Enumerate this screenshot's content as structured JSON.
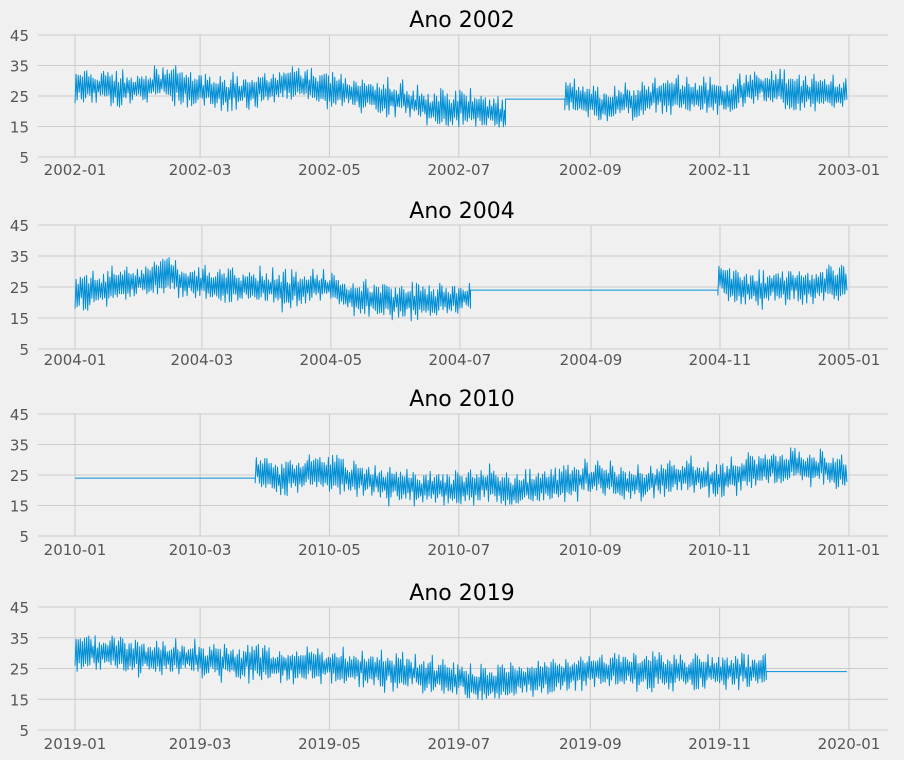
{
  "chart_data": [
    {
      "type": "line",
      "title": "Ano 2002",
      "x_range": [
        "2002-01-01",
        "2003-01-01"
      ],
      "ylim": [
        5,
        45
      ],
      "yticks": [
        5,
        15,
        25,
        35,
        45
      ],
      "xtick_labels": [
        "2002-01",
        "2002-03",
        "2002-05",
        "2002-07",
        "2002-09",
        "2002-11",
        "2003-01"
      ],
      "grid": true,
      "series": [
        {
          "color": "#008fd5",
          "segments": [
            {
              "from": "2002-01-01",
              "to": "2002-07-23",
              "level": [
                28,
                28,
                27,
                28,
                29,
                28,
                27,
                26,
                26,
                28,
                29,
                28,
                27,
                26,
                25,
                24,
                22,
                21,
                21,
                20,
                18
              ]
            },
            {
              "from": "2002-07-23",
              "to": "2002-08-20",
              "flat": 24
            },
            {
              "from": "2002-08-20",
              "to": "2002-12-31",
              "level": [
                25,
                23,
                21,
                23,
                24,
                26,
                25,
                25,
                24,
                27,
                28,
                27,
                26,
                26,
                26
              ]
            }
          ]
        }
      ]
    },
    {
      "type": "line",
      "title": "Ano 2004",
      "x_range": [
        "2004-01-01",
        "2005-01-01"
      ],
      "ylim": [
        5,
        45
      ],
      "yticks": [
        5,
        15,
        25,
        35,
        45
      ],
      "xtick_labels": [
        "2004-01",
        "2004-03",
        "2004-05",
        "2004-07",
        "2004-09",
        "2004-11",
        "2005-01"
      ],
      "grid": true,
      "series": [
        {
          "color": "#008fd5",
          "segments": [
            {
              "from": "2004-01-01",
              "to": "2004-07-06",
              "level": [
                23,
                24,
                26,
                27,
                29,
                26,
                26,
                25,
                25,
                24,
                25,
                25,
                21,
                21,
                20,
                20,
                21,
                22
              ]
            },
            {
              "from": "2004-07-06",
              "to": "2004-10-31",
              "flat": 24
            },
            {
              "from": "2004-10-31",
              "to": "2004-12-31",
              "level": [
                27,
                25,
                24,
                25,
                26,
                25,
                26,
                27
              ]
            }
          ]
        }
      ]
    },
    {
      "type": "line",
      "title": "Ano 2010",
      "x_range": [
        "2010-01-01",
        "2011-01-01"
      ],
      "ylim": [
        5,
        45
      ],
      "yticks": [
        5,
        15,
        25,
        35,
        45
      ],
      "xtick_labels": [
        "2010-01",
        "2010-03",
        "2010-05",
        "2010-07",
        "2010-09",
        "2010-11",
        "2011-01"
      ],
      "grid": true,
      "series": [
        {
          "color": "#008fd5",
          "segments": [
            {
              "from": "2010-01-01",
              "to": "2010-03-27",
              "flat": 24
            },
            {
              "from": "2010-03-27",
              "to": "2010-12-31",
              "level": [
                27,
                23,
                26,
                25,
                24,
                22,
                21,
                20,
                21,
                22,
                20,
                21,
                22,
                24,
                23,
                22,
                24,
                25,
                23,
                26,
                27,
                28,
                27,
                26
              ]
            }
          ]
        }
      ]
    },
    {
      "type": "line",
      "title": "Ano 2019",
      "x_range": [
        "2019-01-01",
        "2020-01-01"
      ],
      "ylim": [
        5,
        45
      ],
      "yticks": [
        5,
        15,
        25,
        35,
        45
      ],
      "xtick_labels": [
        "2019-01",
        "2019-03",
        "2019-05",
        "2019-07",
        "2019-09",
        "2019-11",
        "2020-01"
      ],
      "grid": true,
      "series": [
        {
          "color": "#008fd5",
          "segments": [
            {
              "from": "2019-01-01",
              "to": "2019-11-23",
              "level": [
                30,
                30,
                29,
                28,
                28,
                27,
                27,
                26,
                26,
                26,
                25,
                24,
                23,
                22,
                20,
                21,
                22,
                23,
                24,
                25,
                24,
                24,
                24,
                24,
                24
              ]
            },
            {
              "from": "2019-11-23",
              "to": "2019-12-31",
              "flat": 24
            }
          ]
        }
      ]
    }
  ]
}
